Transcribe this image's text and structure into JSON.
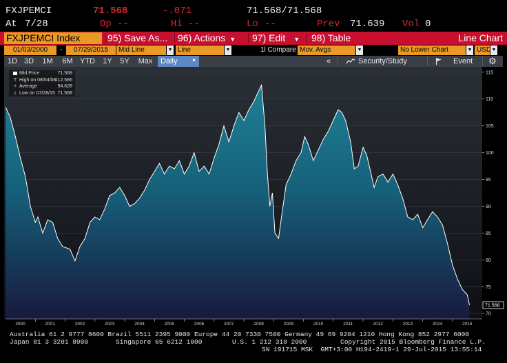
{
  "quote": {
    "ticker": "FXJPEMCI",
    "last": "71.568",
    "change": "-.071",
    "bid_ask": "71.568/71.568",
    "at_label": "At",
    "at_date": "7/28",
    "open_label": "Op",
    "open_val": "--",
    "high_label": "Hi",
    "high_val": "--",
    "low_label": "Lo",
    "low_val": "--",
    "prev_label": "Prev",
    "prev_val": "71.639",
    "vol_label": "Vol",
    "vol_val": "0"
  },
  "menubar": {
    "security": "FXJPEMCI Index",
    "save": "95) Save As...",
    "actions": "96) Actions",
    "edit": "97) Edit",
    "table": "98) Table",
    "chart_type": "Line Chart"
  },
  "controls": {
    "start_date": "01/03/2000",
    "dash": "-",
    "end_date": "07/29/2015",
    "price_field": "Mid Line",
    "line_type": "Line",
    "compare": "1l Compare",
    "mov_avgs": "Mov. Avgs",
    "lower_chart": "No Lower Chart",
    "currency": "USD"
  },
  "tabs": {
    "periods": [
      "1D",
      "3D",
      "1M",
      "6M",
      "YTD",
      "1Y",
      "5Y",
      "Max"
    ],
    "selected": "Daily",
    "collapse": "«",
    "security_study": "Security/Study",
    "event": "Event"
  },
  "legend": {
    "rows": [
      {
        "label": "Mid Price",
        "value": "71.568"
      },
      {
        "label": "High on 08/04/08",
        "value": "112.586"
      },
      {
        "label": "Average",
        "value": "94.628"
      },
      {
        "label": "Low on 07/28/15",
        "value": "71.568"
      }
    ]
  },
  "colors": {
    "menubar": "#c8102e",
    "field": "#e99a26",
    "accent_red": "#e0262c",
    "tab_selected": "#5b88c2",
    "area_top": "#1f8193",
    "area_bottom": "#171a3e",
    "line": "#ffffff"
  },
  "chart_data": {
    "type": "area",
    "title": "",
    "xlabel": "",
    "ylabel": "",
    "ylim": [
      69,
      116
    ],
    "yticks": [
      70,
      75,
      80,
      85,
      90,
      95,
      100,
      105,
      110,
      115
    ],
    "xticks": [
      "2000",
      "2001",
      "2002",
      "2003",
      "2004",
      "2005",
      "2006",
      "2007",
      "2008",
      "2009",
      "2010",
      "2011",
      "2012",
      "2013",
      "2014",
      "2015"
    ],
    "last_value_label": "71.568",
    "grid": true,
    "series": [
      {
        "values": [
          [
            "2000-01-03",
            108.5
          ],
          [
            "2000-03-01",
            106.5
          ],
          [
            "2000-05-01",
            103.0
          ],
          [
            "2000-07-01",
            99.0
          ],
          [
            "2000-09-01",
            95.5
          ],
          [
            "2000-11-01",
            90.0
          ],
          [
            "2001-01-01",
            87.0
          ],
          [
            "2001-02-01",
            88.0
          ],
          [
            "2001-04-01",
            85.0
          ],
          [
            "2001-06-01",
            87.5
          ],
          [
            "2001-08-01",
            87.0
          ],
          [
            "2001-10-01",
            84.0
          ],
          [
            "2001-12-01",
            82.5
          ],
          [
            "2002-03-01",
            82.0
          ],
          [
            "2002-05-01",
            79.8
          ],
          [
            "2002-07-01",
            82.5
          ],
          [
            "2002-09-01",
            84.0
          ],
          [
            "2002-11-01",
            87.0
          ],
          [
            "2003-01-01",
            88.0
          ],
          [
            "2003-03-01",
            87.5
          ],
          [
            "2003-05-01",
            89.5
          ],
          [
            "2003-07-01",
            92.0
          ],
          [
            "2003-09-01",
            92.5
          ],
          [
            "2003-11-01",
            93.5
          ],
          [
            "2004-01-01",
            92.0
          ],
          [
            "2004-03-01",
            90.0
          ],
          [
            "2004-05-01",
            90.5
          ],
          [
            "2004-07-01",
            91.5
          ],
          [
            "2004-09-01",
            93.0
          ],
          [
            "2004-11-01",
            95.0
          ],
          [
            "2005-01-01",
            96.5
          ],
          [
            "2005-03-01",
            98.0
          ],
          [
            "2005-05-01",
            96.0
          ],
          [
            "2005-07-01",
            97.5
          ],
          [
            "2005-09-01",
            97.0
          ],
          [
            "2005-11-01",
            98.5
          ],
          [
            "2006-01-01",
            96.0
          ],
          [
            "2006-03-01",
            97.5
          ],
          [
            "2006-05-01",
            100.0
          ],
          [
            "2006-07-01",
            96.5
          ],
          [
            "2006-09-01",
            97.5
          ],
          [
            "2006-11-01",
            96.0
          ],
          [
            "2007-01-01",
            99.0
          ],
          [
            "2007-03-01",
            101.5
          ],
          [
            "2007-05-01",
            105.0
          ],
          [
            "2007-07-01",
            102.0
          ],
          [
            "2007-09-01",
            105.0
          ],
          [
            "2007-11-01",
            107.5
          ],
          [
            "2008-01-01",
            106.0
          ],
          [
            "2008-03-01",
            108.0
          ],
          [
            "2008-05-01",
            109.5
          ],
          [
            "2008-06-15",
            111.0
          ],
          [
            "2008-08-04",
            112.586
          ],
          [
            "2008-09-15",
            105.0
          ],
          [
            "2008-10-15",
            96.0
          ],
          [
            "2008-11-15",
            90.0
          ],
          [
            "2008-12-15",
            92.5
          ],
          [
            "2009-01-15",
            85.0
          ],
          [
            "2009-03-01",
            84.0
          ],
          [
            "2009-04-15",
            89.0
          ],
          [
            "2009-06-01",
            94.0
          ],
          [
            "2009-08-01",
            96.0
          ],
          [
            "2009-10-01",
            98.5
          ],
          [
            "2009-12-01",
            100.0
          ],
          [
            "2010-01-15",
            103.0
          ],
          [
            "2010-03-01",
            101.5
          ],
          [
            "2010-05-01",
            98.5
          ],
          [
            "2010-07-01",
            100.5
          ],
          [
            "2010-09-01",
            102.5
          ],
          [
            "2010-11-01",
            104.0
          ],
          [
            "2011-01-15",
            106.5
          ],
          [
            "2011-03-01",
            108.0
          ],
          [
            "2011-04-15",
            107.5
          ],
          [
            "2011-06-01",
            106.0
          ],
          [
            "2011-08-01",
            102.0
          ],
          [
            "2011-09-15",
            97.0
          ],
          [
            "2011-11-01",
            97.5
          ],
          [
            "2012-01-01",
            101.0
          ],
          [
            "2012-02-15",
            99.5
          ],
          [
            "2012-04-01",
            96.5
          ],
          [
            "2012-05-15",
            93.5
          ],
          [
            "2012-07-01",
            95.5
          ],
          [
            "2012-09-01",
            96.0
          ],
          [
            "2012-11-01",
            94.5
          ],
          [
            "2013-01-01",
            96.0
          ],
          [
            "2013-03-01",
            94.0
          ],
          [
            "2013-05-01",
            91.5
          ],
          [
            "2013-07-01",
            88.0
          ],
          [
            "2013-09-01",
            87.5
          ],
          [
            "2013-11-01",
            88.5
          ],
          [
            "2014-01-01",
            86.0
          ],
          [
            "2014-03-01",
            87.5
          ],
          [
            "2014-05-01",
            89.0
          ],
          [
            "2014-07-01",
            88.0
          ],
          [
            "2014-09-01",
            86.5
          ],
          [
            "2014-11-01",
            83.0
          ],
          [
            "2015-01-01",
            79.0
          ],
          [
            "2015-03-01",
            76.5
          ],
          [
            "2015-05-01",
            74.5
          ],
          [
            "2015-07-01",
            73.5
          ],
          [
            "2015-07-28",
            71.568
          ]
        ]
      }
    ]
  },
  "footer": {
    "line1": "Australia 61 2 9777 8600 Brazil 5511 2395 9000 Europe 44 20 7330 7500 Germany 49 69 9204 1210 Hong Kong 852 2977 6000",
    "line2_left": "Japan 81 3 3201 8900",
    "line2_mid": "Singapore 65 6212 1000",
    "line2_us": "U.S. 1 212 318 2000",
    "line2_copy": "Copyright 2015 Bloomberg Finance L.P.",
    "line3": "SN 191715 MSK  GMT+3:00 H194-2419-1 29-Jul-2015 13:55:14"
  }
}
